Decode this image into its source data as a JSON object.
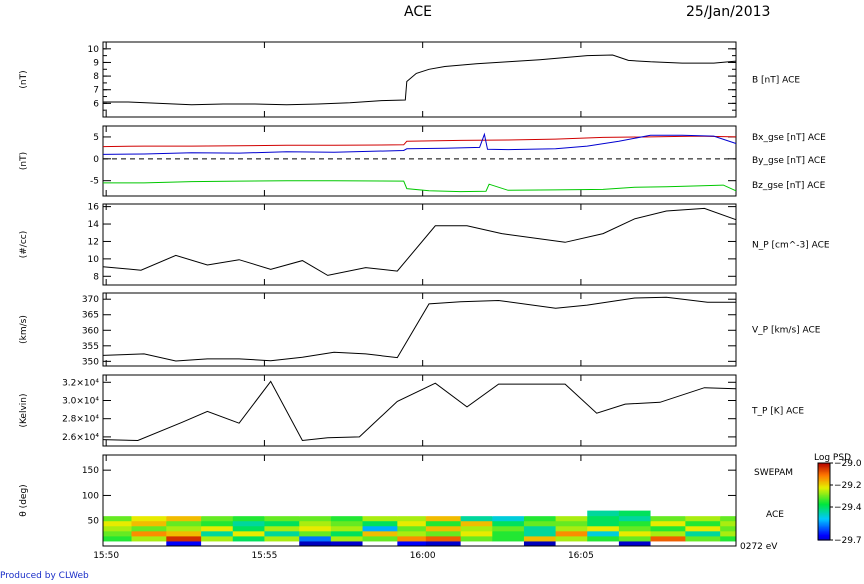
{
  "header": {
    "title": "ACE",
    "date": "25/Jan/2013"
  },
  "footer": {
    "credit": "Produced by CLWeb"
  },
  "time_axis": {
    "ticks": [
      "15:50",
      "15:55",
      "16:00",
      "16:05"
    ],
    "range_minutes": [
      15.7,
      35.7
    ],
    "tick_minutes": [
      15.8,
      20.8,
      25.8,
      30.8
    ]
  },
  "chart_data": [
    {
      "id": "btot",
      "type": "line",
      "ylabel": "(nT)",
      "ylim": [
        5,
        10.5
      ],
      "yticks": [
        6,
        7,
        8,
        9,
        10
      ],
      "ytick_labels": [
        "6",
        "7",
        "8",
        "9",
        "10"
      ],
      "series": [
        {
          "name": "B [nT] ACE",
          "color": "#000000",
          "x": [
            15.7,
            16.5,
            17.5,
            18.5,
            19.5,
            20.5,
            21.5,
            22.5,
            23.5,
            24.5,
            25.25,
            25.3,
            25.6,
            26.0,
            26.5,
            27.5,
            28.5,
            29.5,
            30.5,
            31.0,
            31.8,
            32.3,
            33.0,
            34.0,
            35.0,
            35.7
          ],
          "y": [
            6.1,
            6.1,
            6.0,
            5.9,
            5.95,
            5.95,
            5.9,
            5.95,
            6.05,
            6.2,
            6.25,
            7.6,
            8.2,
            8.5,
            8.7,
            8.9,
            9.05,
            9.2,
            9.4,
            9.5,
            9.55,
            9.15,
            9.05,
            8.95,
            8.95,
            9.1
          ]
        }
      ]
    },
    {
      "id": "bgse",
      "type": "line",
      "ylabel": "(nT)",
      "ylim": [
        -8.5,
        7.5
      ],
      "yticks": [
        -5,
        0,
        5
      ],
      "ytick_labels": [
        "-5",
        "0",
        "5"
      ],
      "zero_line": "dashed",
      "series": [
        {
          "name": "Bx_gse [nT] ACE",
          "color": "#d00000",
          "x": [
            15.7,
            17,
            18.5,
            20,
            21.5,
            23,
            25.2,
            25.3,
            27,
            28.5,
            30,
            31.5,
            33,
            34.5,
            35.7
          ],
          "y": [
            2.8,
            2.9,
            2.9,
            3.0,
            3.1,
            3.1,
            3.2,
            4.0,
            4.2,
            4.3,
            4.5,
            4.9,
            5.0,
            5.2,
            5.0
          ]
        },
        {
          "name": "By_gse [nT] ACE",
          "color": "#00c800",
          "x": [
            15.7,
            17,
            18.5,
            20,
            21.5,
            23,
            25.2,
            25.3,
            26,
            27,
            27.8,
            27.9,
            28.5,
            30,
            31.5,
            32.5,
            33.5,
            34.5,
            35.3,
            35.7
          ],
          "y": [
            -5.5,
            -5.5,
            -5.2,
            -5.1,
            -5.0,
            -5.0,
            -5.1,
            -6.8,
            -7.3,
            -7.5,
            -7.4,
            -5.8,
            -7.2,
            -7.1,
            -7.0,
            -6.5,
            -6.4,
            -6.2,
            -6.0,
            -7.3
          ]
        },
        {
          "name": "Bz_gse [nT] ACE",
          "color": "#0000d0",
          "x": [
            15.7,
            17,
            18.5,
            20,
            21.5,
            23,
            25.2,
            25.3,
            26.5,
            27.6,
            27.75,
            27.85,
            28.5,
            30,
            31,
            32,
            33,
            34,
            35,
            35.7
          ],
          "y": [
            1.0,
            1.1,
            1.4,
            1.3,
            1.6,
            1.5,
            1.9,
            2.3,
            2.4,
            2.6,
            5.6,
            2.2,
            2.1,
            2.3,
            2.9,
            4.0,
            5.4,
            5.4,
            5.2,
            3.5
          ]
        }
      ]
    },
    {
      "id": "np",
      "type": "line",
      "ylabel": "(#/cc)",
      "ylim": [
        7,
        16.3
      ],
      "yticks": [
        8,
        10,
        12,
        14,
        16
      ],
      "ytick_labels": [
        "8",
        "10",
        "12",
        "14",
        "16"
      ],
      "series": [
        {
          "name": "N_P [cm^-3] ACE",
          "color": "#000000",
          "x": [
            15.7,
            16.9,
            18.0,
            19.0,
            20.0,
            21.0,
            22.0,
            22.8,
            24.0,
            25.0,
            26.2,
            27.2,
            28.3,
            30.3,
            31.5,
            32.5,
            33.5,
            34.7,
            35.7
          ],
          "y": [
            9.1,
            8.7,
            10.4,
            9.3,
            9.9,
            8.8,
            9.8,
            8.1,
            9.0,
            8.6,
            13.8,
            13.8,
            12.9,
            11.9,
            12.9,
            14.6,
            15.5,
            15.8,
            14.5
          ]
        }
      ]
    },
    {
      "id": "vp",
      "type": "line",
      "ylabel": "(km/s)",
      "ylim": [
        348.5,
        372
      ],
      "yticks": [
        350,
        355,
        360,
        365,
        370
      ],
      "ytick_labels": [
        "350",
        "355",
        "360",
        "365",
        "370"
      ],
      "series": [
        {
          "name": "V_P [km/s] ACE",
          "color": "#000000",
          "x": [
            15.7,
            17.0,
            18.0,
            19.0,
            20.0,
            21.0,
            22.0,
            23.0,
            24.0,
            25.0,
            26.0,
            27.0,
            28.2,
            30.0,
            31.0,
            32.5,
            33.5,
            34.8,
            35.7
          ],
          "y": [
            351.9,
            352.4,
            350.1,
            350.8,
            350.8,
            350.2,
            351.3,
            352.9,
            352.4,
            351.2,
            368.5,
            369.2,
            369.6,
            367.1,
            368.1,
            370.4,
            370.6,
            369.0,
            369.0
          ]
        }
      ]
    },
    {
      "id": "tp",
      "type": "line",
      "ylabel": "(Kelvin)",
      "ylim": [
        25000,
        32800
      ],
      "yticks": [
        26000,
        28000,
        30000,
        32000
      ],
      "ytick_labels": [
        "2.6×10⁴",
        "2.8×10⁴",
        "3.0×10⁴",
        "3.2×10⁴"
      ],
      "series": [
        {
          "name": "T_P [K] ACE",
          "color": "#000000",
          "x": [
            15.7,
            16.8,
            18.2,
            19.0,
            20.0,
            21.0,
            22.0,
            22.8,
            23.8,
            25.0,
            26.2,
            27.2,
            28.2,
            30.3,
            31.3,
            32.2,
            33.3,
            34.7,
            35.7
          ],
          "y": [
            25700,
            25600,
            27600,
            28800,
            27500,
            32100,
            25600,
            25900,
            26000,
            29900,
            31900,
            29300,
            31800,
            31800,
            28600,
            29600,
            29800,
            31400,
            31300
          ]
        }
      ]
    },
    {
      "id": "psd",
      "type": "heatmap",
      "ylabel": "θ (deg)",
      "ylim": [
        0,
        180
      ],
      "yticks": [
        50,
        100,
        150
      ],
      "ytick_labels": [
        "50",
        "100",
        "150"
      ],
      "right_labels": [
        "SWEPAM",
        "ACE",
        "0272 eV"
      ],
      "colorbar": {
        "title": "Log PSD",
        "range": [
          -29.7,
          -29.0
        ],
        "ticks": [
          -29.0,
          -29.2,
          -29.4,
          -29.7
        ],
        "tick_labels": [
          "−29.0",
          "−29.2",
          "−29.4",
          "−29.7"
        ]
      },
      "theta_edges": [
        0,
        10,
        20,
        30,
        40,
        50,
        60,
        70
      ],
      "time_edges": [
        15.7,
        16.6,
        17.7,
        18.8,
        19.8,
        20.8,
        21.9,
        22.9,
        23.9,
        25.0,
        25.9,
        27.0,
        28.0,
        29.0,
        30.0,
        31.0,
        32.0,
        33.0,
        34.1,
        35.2,
        35.7
      ],
      "values": [
        [
          -29.9,
          -29.95,
          -29.75,
          -29.85,
          -29.88,
          -29.9,
          -29.82,
          -29.8,
          -29.85,
          -29.75,
          -29.8,
          -29.88,
          -29.9,
          -29.82,
          -29.92,
          -29.85,
          -29.8,
          -29.88,
          -29.9,
          -29.85
        ],
        [
          -29.4,
          -29.3,
          -29.05,
          -29.3,
          -29.45,
          -29.3,
          -29.65,
          -29.3,
          -29.35,
          -29.15,
          -29.1,
          -29.35,
          -29.4,
          -29.2,
          -29.3,
          -29.4,
          -29.35,
          -29.1,
          -29.35,
          -29.4
        ],
        [
          -29.35,
          -29.15,
          -29.2,
          -29.5,
          -29.25,
          -29.5,
          -29.35,
          -29.45,
          -29.2,
          -29.3,
          -29.35,
          -29.25,
          -29.4,
          -29.5,
          -29.15,
          -29.55,
          -29.25,
          -29.3,
          -29.5,
          -29.3
        ],
        [
          -29.3,
          -29.35,
          -29.3,
          -29.25,
          -29.45,
          -29.3,
          -29.25,
          -29.3,
          -29.6,
          -29.35,
          -29.2,
          -29.3,
          -29.35,
          -29.5,
          -29.3,
          -29.25,
          -29.35,
          -29.4,
          -29.25,
          -29.35
        ],
        [
          -29.25,
          -29.2,
          -29.35,
          -29.4,
          -29.5,
          -29.45,
          -29.3,
          -29.35,
          -29.45,
          -29.25,
          -29.4,
          -29.2,
          -29.45,
          -29.35,
          -29.35,
          -29.45,
          -29.4,
          -29.25,
          -29.4,
          -29.3
        ],
        [
          -29.35,
          -29.25,
          -29.2,
          -29.35,
          -29.4,
          -29.35,
          -29.35,
          -29.4,
          -29.3,
          -29.3,
          -29.2,
          -29.5,
          -29.55,
          -29.4,
          -29.3,
          -29.45,
          -29.5,
          -29.35,
          -29.3,
          -29.35
        ],
        [
          -29.9,
          -29.9,
          -29.9,
          -29.9,
          -29.9,
          -29.9,
          -29.9,
          -29.9,
          -29.9,
          -29.9,
          -29.9,
          -29.9,
          -29.9,
          -29.9,
          -29.9,
          -29.5,
          -29.45,
          -29.9,
          -29.9,
          -29.9
        ]
      ]
    }
  ]
}
